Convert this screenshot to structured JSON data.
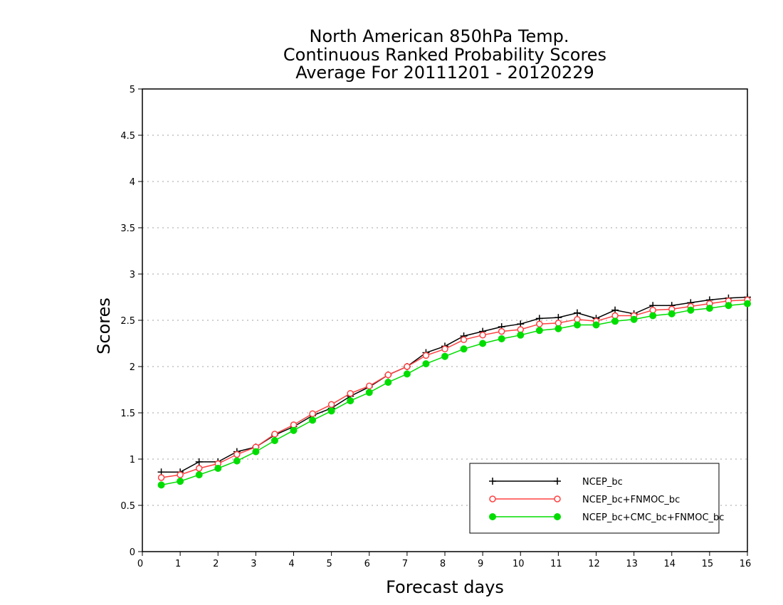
{
  "chart_data": {
    "type": "line",
    "title_lines": [
      "North American 850hPa Temp.",
      "Continuous Ranked Probability Scores",
      "Average For 20111201 - 20120229"
    ],
    "xlabel": "Forecast days",
    "ylabel": "Scores",
    "xlim": [
      0,
      16
    ],
    "ylim": [
      0,
      5
    ],
    "x_ticks": [
      "0",
      "1",
      "2",
      "3",
      "4",
      "5",
      "6",
      "7",
      "8",
      "9",
      "10",
      "11",
      "12",
      "13",
      "14",
      "15",
      "16"
    ],
    "y_ticks": [
      "0",
      "0.5",
      "1",
      "1.5",
      "2",
      "2.5",
      "3",
      "3.5",
      "4",
      "4.5",
      "5"
    ],
    "grid": "horizontal dotted",
    "legend_position": "bottom-right",
    "x": [
      0.5,
      1,
      1.5,
      2,
      2.5,
      3,
      3.5,
      4,
      4.5,
      5,
      5.5,
      6,
      6.5,
      7,
      7.5,
      8,
      8.5,
      9,
      9.5,
      10,
      10.5,
      11,
      11.5,
      12,
      12.5,
      13,
      13.5,
      14,
      14.5,
      15,
      15.5,
      16
    ],
    "series": [
      {
        "name": "NCEP_bc",
        "color": "#000000",
        "marker": "plus",
        "values": [
          0.86,
          0.86,
          0.97,
          0.97,
          1.08,
          1.13,
          1.26,
          1.35,
          1.47,
          1.55,
          1.68,
          1.78,
          1.91,
          2.0,
          2.15,
          2.22,
          2.33,
          2.38,
          2.43,
          2.46,
          2.52,
          2.53,
          2.58,
          2.52,
          2.61,
          2.57,
          2.66,
          2.66,
          2.69,
          2.72,
          2.74,
          2.75
        ]
      },
      {
        "name": "NCEP_bc+FNMOC_bc",
        "color": "#ff4040",
        "marker": "open-circle",
        "values": [
          0.8,
          0.83,
          0.9,
          0.95,
          1.05,
          1.13,
          1.27,
          1.37,
          1.49,
          1.59,
          1.71,
          1.79,
          1.91,
          2.0,
          2.12,
          2.19,
          2.29,
          2.34,
          2.38,
          2.4,
          2.46,
          2.47,
          2.51,
          2.49,
          2.55,
          2.55,
          2.61,
          2.62,
          2.65,
          2.68,
          2.71,
          2.72
        ]
      },
      {
        "name": "NCEP_bc+CMC_bc+FNMOC_bc",
        "color": "#00dd00",
        "marker": "filled-circle",
        "values": [
          0.72,
          0.76,
          0.83,
          0.9,
          0.98,
          1.08,
          1.2,
          1.31,
          1.42,
          1.52,
          1.63,
          1.72,
          1.83,
          1.92,
          2.03,
          2.11,
          2.19,
          2.25,
          2.3,
          2.34,
          2.39,
          2.41,
          2.45,
          2.45,
          2.49,
          2.51,
          2.55,
          2.57,
          2.61,
          2.63,
          2.66,
          2.68
        ]
      }
    ]
  }
}
